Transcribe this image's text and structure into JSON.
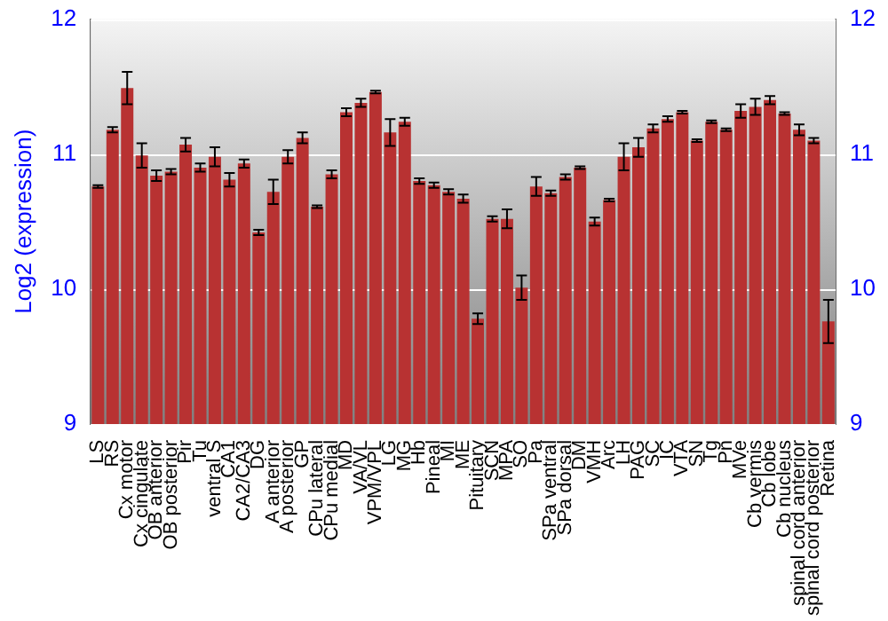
{
  "chart_data": {
    "type": "bar",
    "ylabel": "Log2 (expression)",
    "categories": [
      "LS",
      "RS",
      "Cx motor",
      "Cx cingulate",
      "OB anterior",
      "OB posterior",
      "Pir",
      "Tu",
      "ventral S",
      "CA1",
      "CA2/CA3",
      "DG",
      "A anterior",
      "A posterior",
      "GP",
      "CPu lateral",
      "CPu medial",
      "MD",
      "VA/VL",
      "VPM/VPL",
      "LG",
      "MG",
      "Hb",
      "Pineal",
      "MI",
      "ME",
      "Pituitary",
      "SCN",
      "MPA",
      "SO",
      "Pa",
      "SPa ventral",
      "SPa dorsal",
      "DM",
      "VMH",
      "Arc",
      "LH",
      "PAG",
      "SC",
      "IC",
      "VTA",
      "SN",
      "Tg",
      "Pn",
      "MVe",
      "Cb vermis",
      "Cb lobe",
      "Cb nucleus",
      "spinal cord anterior",
      "spinal cord posterior",
      "Retina"
    ],
    "values": [
      10.76,
      11.18,
      11.49,
      10.99,
      10.84,
      10.87,
      11.07,
      10.9,
      10.98,
      10.81,
      10.93,
      10.42,
      10.72,
      10.98,
      11.12,
      10.61,
      10.85,
      11.31,
      11.38,
      11.46,
      11.16,
      11.24,
      10.8,
      10.77,
      10.72,
      10.67,
      9.78,
      10.52,
      10.52,
      10.01,
      10.76,
      10.71,
      10.83,
      10.9,
      10.5,
      10.66,
      10.98,
      11.05,
      11.19,
      11.26,
      11.31,
      11.1,
      11.24,
      11.18,
      11.32,
      11.35,
      11.4,
      11.3,
      11.18,
      11.1,
      9.76
    ],
    "errors": [
      0.01,
      0.02,
      0.12,
      0.09,
      0.04,
      0.02,
      0.05,
      0.03,
      0.07,
      0.05,
      0.03,
      0.02,
      0.09,
      0.05,
      0.04,
      0.01,
      0.03,
      0.03,
      0.03,
      0.01,
      0.1,
      0.03,
      0.02,
      0.02,
      0.02,
      0.03,
      0.04,
      0.02,
      0.07,
      0.09,
      0.07,
      0.02,
      0.02,
      0.01,
      0.03,
      0.01,
      0.1,
      0.07,
      0.03,
      0.02,
      0.01,
      0.01,
      0.01,
      0.01,
      0.05,
      0.06,
      0.03,
      0.01,
      0.04,
      0.02,
      0.16
    ],
    "color": "#b83232",
    "ylim": [
      9,
      12
    ],
    "yticks": [
      9,
      10,
      11,
      12
    ],
    "y2lim": [
      9,
      12
    ],
    "y2ticks": [
      9,
      10,
      11,
      12
    ],
    "grid": "y",
    "legend": false
  }
}
